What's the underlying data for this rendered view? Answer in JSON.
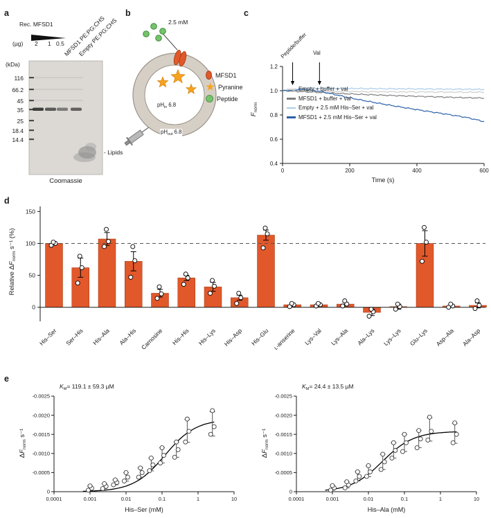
{
  "figure": {
    "panel_labels": {
      "a": "a",
      "b": "b",
      "c": "c",
      "d": "d",
      "e": "e"
    }
  },
  "panels": {
    "a": {
      "rec_label": "Rec. MFSD1",
      "ug_label": "(µg)",
      "ug_values": [
        "2",
        "1",
        "0.5"
      ],
      "lane_labels": [
        "MFSD1 PE:PG:CHS",
        "Empty PE:PG:CHS"
      ],
      "kda_label": "(kDa)",
      "markers": [
        "116",
        "66.2",
        "45",
        "35",
        "25",
        "18.4",
        "14.4"
      ],
      "band_lanes": [
        0.9,
        0.75,
        0.55,
        0.7,
        0
      ],
      "lipids_label": "- Lipids",
      "stain_label": "Coomassie"
    },
    "b": {
      "conc_label": "2.5 mM",
      "ph_in": {
        "pre": "pH",
        "sub": "in",
        "val": " 6.8"
      },
      "ph_out": {
        "pre": "pH",
        "sub": "out",
        "val": " 6.8"
      },
      "legend": [
        {
          "label": "MFSD1"
        },
        {
          "label": "Pyranine"
        },
        {
          "label": "Peptide"
        }
      ],
      "colors": {
        "mfsd1": "#e1582b",
        "pyranine": "#f5a31f",
        "peptide": "#74c46c"
      }
    },
    "c": {
      "ylabel": {
        "f": "F",
        "sub": "norm"
      }
    },
    "d": {
      "ylabel": {
        "pre": "Relative Δ",
        "f": "F",
        "sub": "norm",
        "post": " s⁻¹ (%)"
      }
    },
    "e": {
      "km1": {
        "k": "K",
        "sub": "M",
        "val": "= 119.1 ± 59.3 µM"
      },
      "km2": {
        "k": "K",
        "sub": "M",
        "val": "= 24.4 ± 13.5 µM"
      },
      "ylabel": {
        "pre": "Δ",
        "f": "F",
        "sub": "norm",
        "post": " s⁻¹"
      }
    }
  },
  "chart_data": [
    {
      "id": "c",
      "type": "line",
      "title": "",
      "xlabel": "Time (s)",
      "ylabel": "Fnorm",
      "xlim": [
        0,
        600
      ],
      "ylim": [
        0.4,
        1.2
      ],
      "xticks": [
        0,
        200,
        400,
        600
      ],
      "yticks": [
        0.4,
        0.6,
        0.8,
        1.0,
        1.2
      ],
      "annotations": [
        {
          "text": "Peptide/buffer",
          "time_s": 30
        },
        {
          "text": "Val",
          "time_s": 110
        }
      ],
      "x": [
        0,
        25,
        50,
        75,
        100,
        125,
        150,
        175,
        200,
        225,
        250,
        275,
        300,
        325,
        350,
        375,
        400,
        425,
        450,
        475,
        500,
        525,
        550,
        575,
        600
      ],
      "series": [
        {
          "name": "Empty + buffer + val",
          "color": "#cdcdcd",
          "values": [
            1.0,
            0.998,
            0.996,
            0.998,
            0.994,
            0.996,
            0.993,
            0.995,
            0.992,
            0.994,
            0.991,
            0.993,
            0.99,
            0.992,
            0.99,
            0.991,
            0.989,
            0.991,
            0.988,
            0.99,
            0.988,
            0.989,
            0.987,
            0.989,
            0.987
          ]
        },
        {
          "name": "MFSD1 + buffer + val",
          "color": "#7f7f7f",
          "values": [
            1.0,
            0.997,
            0.993,
            0.99,
            0.987,
            0.983,
            0.98,
            0.977,
            0.974,
            0.971,
            0.968,
            0.966,
            0.963,
            0.961,
            0.958,
            0.956,
            0.954,
            0.952,
            0.95,
            0.948,
            0.946,
            0.944,
            0.942,
            0.941,
            0.939
          ]
        },
        {
          "name": "Empty + 2.5 mM His–Ser + val",
          "color": "#a9cbe8",
          "values": [
            1.0,
            1.008,
            1.018,
            1.022,
            1.02,
            1.021,
            1.019,
            1.02,
            1.018,
            1.019,
            1.017,
            1.018,
            1.016,
            1.017,
            1.015,
            1.016,
            1.014,
            1.015,
            1.013,
            1.014,
            1.012,
            1.013,
            1.012,
            1.012,
            1.011
          ]
        },
        {
          "name": "MFSD1 + 2.5 mM His–Ser + val",
          "color": "#2b61a8",
          "values": [
            1.0,
            1.004,
            1.01,
            1.008,
            1.0,
            0.988,
            0.972,
            0.957,
            0.942,
            0.928,
            0.915,
            0.902,
            0.89,
            0.878,
            0.866,
            0.855,
            0.844,
            0.833,
            0.822,
            0.812,
            0.801,
            0.79,
            0.778,
            0.762,
            0.745
          ]
        }
      ]
    },
    {
      "id": "d",
      "type": "bar",
      "title": "",
      "ylabel": "Relative ΔFnorm s⁻¹ (%)",
      "bar_color": "#e1582b",
      "dashed_line": 100,
      "ylim": [
        -22,
        158
      ],
      "yticks": [
        0,
        50,
        100,
        150
      ],
      "categories": [
        "His–Ser",
        "Ser–His",
        "His–Ala",
        "Ala–His",
        "Carnosine",
        "His–His",
        "His–Lys",
        "His–Asp",
        "His–Glu",
        "ʟ-anserine",
        "Lys–Val",
        "Lys–Ala",
        "Ala–Lys",
        "Lys–Lys",
        "Glu–Lys",
        "Asp–Ala",
        "Ala–Asp"
      ],
      "values": [
        100,
        62,
        107,
        72,
        22,
        46,
        32,
        15,
        113,
        4,
        4,
        5,
        -8,
        1,
        100,
        2,
        3
      ],
      "errors": [
        2,
        15,
        10,
        15,
        6,
        4,
        7,
        4,
        8,
        2,
        2,
        3,
        5,
        4,
        20,
        2,
        4
      ],
      "points": [
        [
          97,
          100,
          102
        ],
        [
          38,
          62,
          80
        ],
        [
          95,
          103,
          122
        ],
        [
          47,
          73,
          95
        ],
        [
          14,
          21,
          32
        ],
        [
          36,
          46,
          52
        ],
        [
          22,
          33,
          42
        ],
        [
          6,
          15,
          22
        ],
        [
          93,
          115,
          124
        ],
        [
          1,
          4,
          6
        ],
        [
          2,
          4,
          6
        ],
        [
          2,
          5,
          10
        ],
        [
          -14,
          -7,
          -3
        ],
        [
          -3,
          1,
          5
        ],
        [
          72,
          102,
          125
        ],
        [
          0,
          2,
          5
        ],
        [
          -2,
          3,
          10
        ]
      ]
    },
    {
      "id": "e1",
      "type": "scatter",
      "xscale": "log",
      "annotation": "KM = 119.1 ± 59.3 µM",
      "xlabel": "His–Ser (mM)",
      "ylabel": "ΔFnorm s⁻¹",
      "xticks": [
        "0.0001",
        "0.001",
        "0.01",
        "0.1",
        "1",
        "10"
      ],
      "yticks": [
        0,
        -0.0005,
        -0.001,
        -0.0015,
        -0.002,
        -0.0025
      ],
      "km_mM": 0.1191,
      "vmax": -0.0019,
      "points": [
        {
          "x": 0.001,
          "ys": [
            -4e-05,
            -9e-05,
            -0.00015
          ]
        },
        {
          "x": 0.0025,
          "ys": [
            -8e-05,
            -0.00014,
            -0.00021
          ]
        },
        {
          "x": 0.005,
          "ys": [
            -0.00018,
            -0.00024,
            -0.00031
          ]
        },
        {
          "x": 0.01,
          "ys": [
            -0.00028,
            -0.00038,
            -0.0005
          ]
        },
        {
          "x": 0.025,
          "ys": [
            -0.00038,
            -0.0005,
            -0.00062
          ]
        },
        {
          "x": 0.05,
          "ys": [
            -0.00055,
            -0.0007,
            -0.00088
          ]
        },
        {
          "x": 0.1,
          "ys": [
            -0.00075,
            -0.00095,
            -0.00115
          ]
        },
        {
          "x": 0.25,
          "ys": [
            -0.0009,
            -0.0011,
            -0.0013
          ]
        },
        {
          "x": 0.5,
          "ys": [
            -0.0013,
            -0.00158,
            -0.0019
          ]
        },
        {
          "x": 2.5,
          "ys": [
            -0.0015,
            -0.0017,
            -0.00212
          ]
        }
      ]
    },
    {
      "id": "e2",
      "type": "scatter",
      "xscale": "log",
      "annotation": "KM = 24.4 ± 13.5 µM",
      "xlabel": "His–Ala (mM)",
      "ylabel": "ΔFnorm s⁻¹",
      "xticks": [
        "0.0001",
        "0.001",
        "0.01",
        "0.1",
        "1",
        "10"
      ],
      "yticks": [
        0,
        -0.0005,
        -0.001,
        -0.0015,
        -0.002,
        -0.0025
      ],
      "km_mM": 0.0244,
      "vmax": -0.00158,
      "points": [
        {
          "x": 0.001,
          "ys": [
            -4e-05,
            -0.0001,
            -0.00016
          ]
        },
        {
          "x": 0.0025,
          "ys": [
            -0.0001,
            -0.00018,
            -0.00026
          ]
        },
        {
          "x": 0.005,
          "ys": [
            -0.00028,
            -0.0004,
            -0.00052
          ]
        },
        {
          "x": 0.01,
          "ys": [
            -0.0004,
            -0.00052,
            -0.00068
          ]
        },
        {
          "x": 0.025,
          "ys": [
            -0.00058,
            -0.00078,
            -0.00098
          ]
        },
        {
          "x": 0.05,
          "ys": [
            -0.00088,
            -0.00108,
            -0.00128
          ]
        },
        {
          "x": 0.1,
          "ys": [
            -0.00105,
            -0.00128,
            -0.0015
          ]
        },
        {
          "x": 0.25,
          "ys": [
            -0.00115,
            -0.00138,
            -0.0016
          ]
        },
        {
          "x": 0.5,
          "ys": [
            -0.00135,
            -0.00158,
            -0.00195
          ]
        },
        {
          "x": 2.5,
          "ys": [
            -0.00128,
            -0.0015,
            -0.0018
          ]
        }
      ]
    }
  ]
}
